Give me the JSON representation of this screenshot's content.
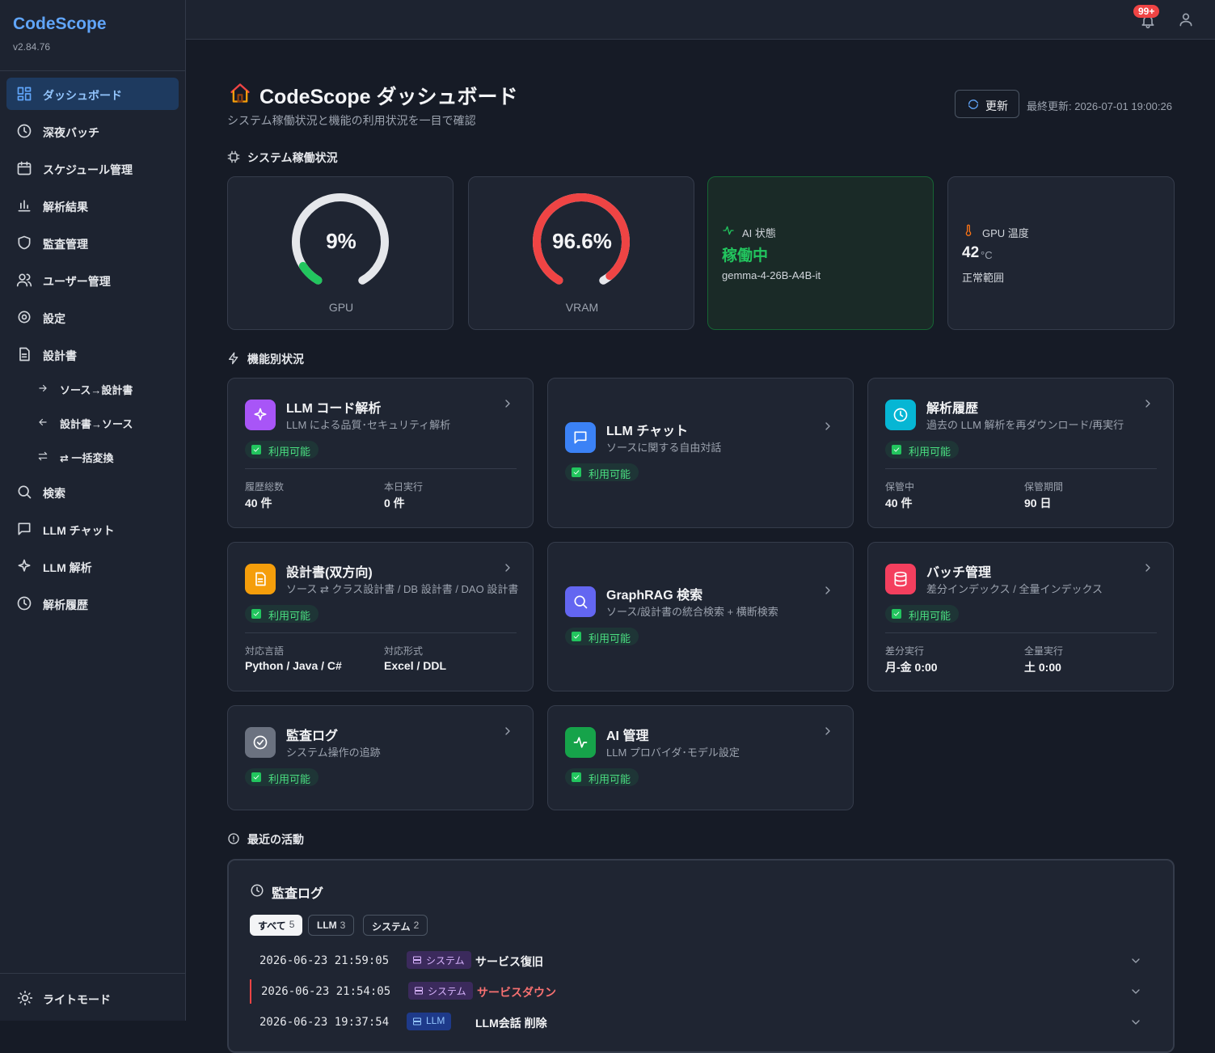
{
  "sidebar": {
    "brand": "CodeScope",
    "version": "v2.84.76",
    "nav": [
      {
        "label": "ダッシュボード",
        "active": true
      },
      {
        "label": "深夜バッチ"
      },
      {
        "label": "スケジュール管理"
      },
      {
        "label": "解析結果"
      },
      {
        "label": "監査管理"
      },
      {
        "label": "ユーザー管理"
      },
      {
        "label": "設定"
      },
      {
        "label": "設計書",
        "children": [
          {
            "label": "ソース→設計書"
          },
          {
            "label": "設計書→ソース"
          },
          {
            "label": "⇄ 一括変換"
          }
        ]
      },
      {
        "label": "検索"
      },
      {
        "label": "LLM チャット"
      },
      {
        "label": "LLM 解析"
      },
      {
        "label": "解析履歴"
      }
    ],
    "theme_toggle": "ライトモード"
  },
  "header": {
    "notification_badge": "99+"
  },
  "page": {
    "title": "CodeScope ダッシュボード",
    "subtitle": "システム稼働状況と機能の利用状況を一目で確認",
    "refresh_button": "更新",
    "last_updated": "最終更新: 2026-07-01 19:00:26"
  },
  "system": {
    "heading": "システム稼働状況",
    "gauges": [
      {
        "name": "GPU",
        "value": 9,
        "label": "9%",
        "color": "#22c55e"
      },
      {
        "name": "VRAM",
        "value": 96.6,
        "label": "96.6%",
        "color": "#ef4444"
      }
    ],
    "ai_status": {
      "label": "AI 状態",
      "value": "稼働中",
      "model": "gemma-4-26B-A4B-it"
    },
    "gpu_temp": {
      "label": "GPU 温度",
      "value": "42",
      "unit": "°C",
      "note": "正常範囲"
    }
  },
  "features": {
    "heading": "機能別状況",
    "cards": [
      {
        "title": "LLM コード解析",
        "description": "LLM による品質･セキュリティ解析",
        "status": "利用可能",
        "color": "#a855f7",
        "stats": [
          {
            "label": "履歴総数",
            "value": "40 件"
          },
          {
            "label": "本日実行",
            "value": "0 件"
          }
        ]
      },
      {
        "title": "LLM チャット",
        "description": "ソースに関する自由対話",
        "status": "利用可能",
        "color": "#3b82f6"
      },
      {
        "title": "解析履歴",
        "description": "過去の LLM 解析を再ダウンロード/再実行",
        "status": "利用可能",
        "color": "#06b6d4",
        "stats": [
          {
            "label": "保管中",
            "value": "40 件"
          },
          {
            "label": "保管期間",
            "value": "90 日"
          }
        ]
      },
      {
        "title": "設計書(双方向)",
        "description": "ソース ⇄ クラス設計書 / DB 設計書 / DAO 設計書",
        "status": "利用可能",
        "color": "#f59e0b",
        "stats": [
          {
            "label": "対応言語",
            "value": "Python / Java / C#"
          },
          {
            "label": "対応形式",
            "value": "Excel / DDL"
          }
        ]
      },
      {
        "title": "GraphRAG 検索",
        "description": "ソース/設計書の統合検索 + 横断検索",
        "status": "利用可能",
        "color": "#6366f1"
      },
      {
        "title": "バッチ管理",
        "description": "差分インデックス / 全量インデックス",
        "status": "利用可能",
        "color": "#f43f5e",
        "stats": [
          {
            "label": "差分実行",
            "value": "月-金 0:00"
          },
          {
            "label": "全量実行",
            "value": "土 0:00"
          }
        ]
      },
      {
        "title": "監査ログ",
        "description": "システム操作の追跡",
        "status": "利用可能",
        "color": "#6b7280"
      },
      {
        "title": "AI 管理",
        "description": "LLM プロバイダ･モデル設定",
        "status": "利用可能",
        "color": "#16a34a"
      }
    ]
  },
  "activity": {
    "heading": "最近の活動",
    "panel_title": "監査ログ",
    "tabs": [
      {
        "label": "すべて",
        "count": 5,
        "active": true
      },
      {
        "label": "LLM",
        "count": 3
      },
      {
        "label": "システム",
        "count": 2
      }
    ],
    "rows": [
      {
        "time": "2026-06-23 21:59:05",
        "tag": "システム",
        "event": "サービス復旧"
      },
      {
        "time": "2026-06-23 21:54:05",
        "tag": "システム",
        "event": "サービスダウン",
        "alert": true
      },
      {
        "time": "2026-06-23 19:37:54",
        "tag": "LLM",
        "event": "LLM会話 削除"
      }
    ]
  }
}
